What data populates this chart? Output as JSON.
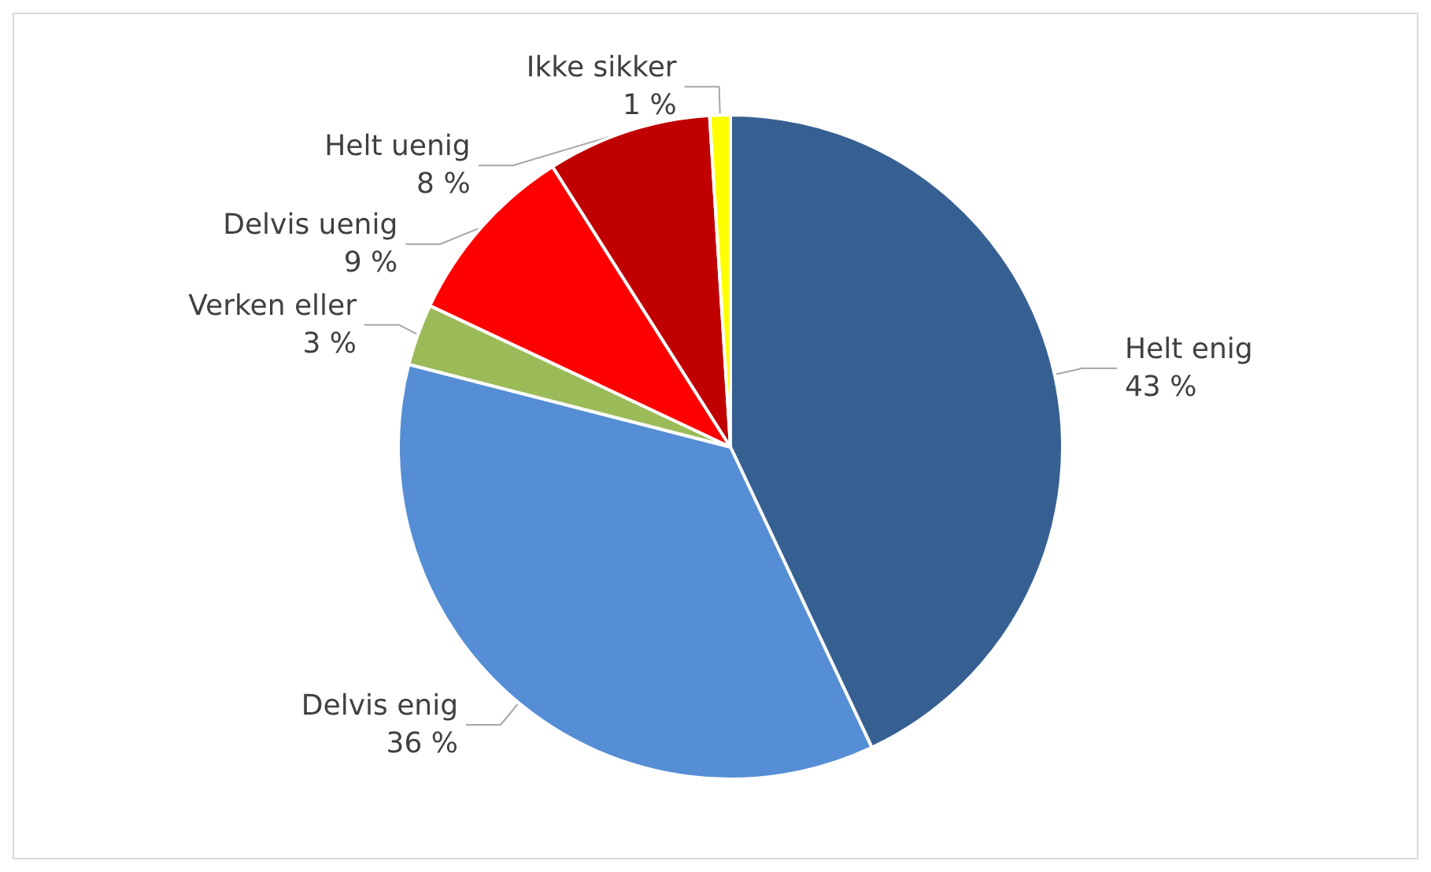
{
  "chart_data": {
    "type": "pie",
    "categories": [
      "Helt enig",
      "Delvis enig",
      "Verken eller",
      "Delvis uenig",
      "Helt uenig",
      "Ikke sikker"
    ],
    "values": [
      43,
      36,
      3,
      9,
      8,
      1
    ],
    "colors": [
      "#376092",
      "#558ed5",
      "#9bbb59",
      "#ff0000",
      "#c00000",
      "#ffff00"
    ],
    "value_labels": [
      "43 %",
      "36 %",
      "3 %",
      "9 %",
      "8 %",
      "1 %"
    ],
    "legend": false
  }
}
